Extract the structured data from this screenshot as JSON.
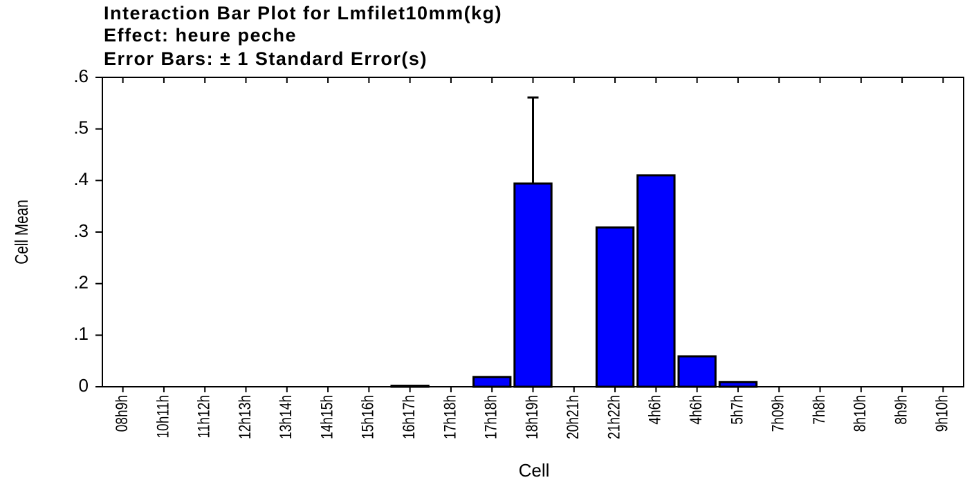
{
  "chart_data": {
    "type": "bar",
    "title": "Interaction Bar Plot for Lmfilet10mm(kg)",
    "subtitle": [
      "Effect: heure peche",
      "Error Bars: ± 1 Standard Error(s)"
    ],
    "x_label": "Cell",
    "y_label": "Cell Mean",
    "categories": [
      "08h9h",
      "10h11h",
      "11h12h",
      "12h13h",
      "13h14h",
      "14h15h",
      "15h16h",
      "16h17h",
      "17h18h",
      "17h18h",
      "18h19h",
      "20h21h",
      "21h22h",
      "4h6h",
      "4h6h",
      "5h7h",
      "7h09h",
      "7h8h",
      "8h10h",
      "8h9h",
      "9h10h"
    ],
    "values": [
      0,
      0,
      0,
      0,
      0,
      0,
      0,
      0.002,
      0,
      0.019,
      0.394,
      0,
      0.309,
      0.41,
      0.059,
      0.009,
      0,
      0,
      0,
      0,
      0
    ],
    "errors": [
      null,
      null,
      null,
      null,
      null,
      null,
      null,
      null,
      null,
      null,
      0.167,
      null,
      null,
      null,
      null,
      null,
      null,
      null,
      null,
      null,
      null
    ],
    "color": "#0000ff",
    "ylim": [
      0,
      0.6
    ],
    "yticks": [
      0,
      {
        "value": 0.1,
        "label": ".1"
      },
      {
        "value": 0.2,
        "label": ".2"
      },
      {
        "value": 0.3,
        "label": ".3"
      },
      {
        "value": 0.4,
        "label": ".4"
      },
      {
        "value": 0.5,
        "label": ".5"
      },
      {
        "value": 0.6,
        "label": ".6"
      }
    ]
  }
}
